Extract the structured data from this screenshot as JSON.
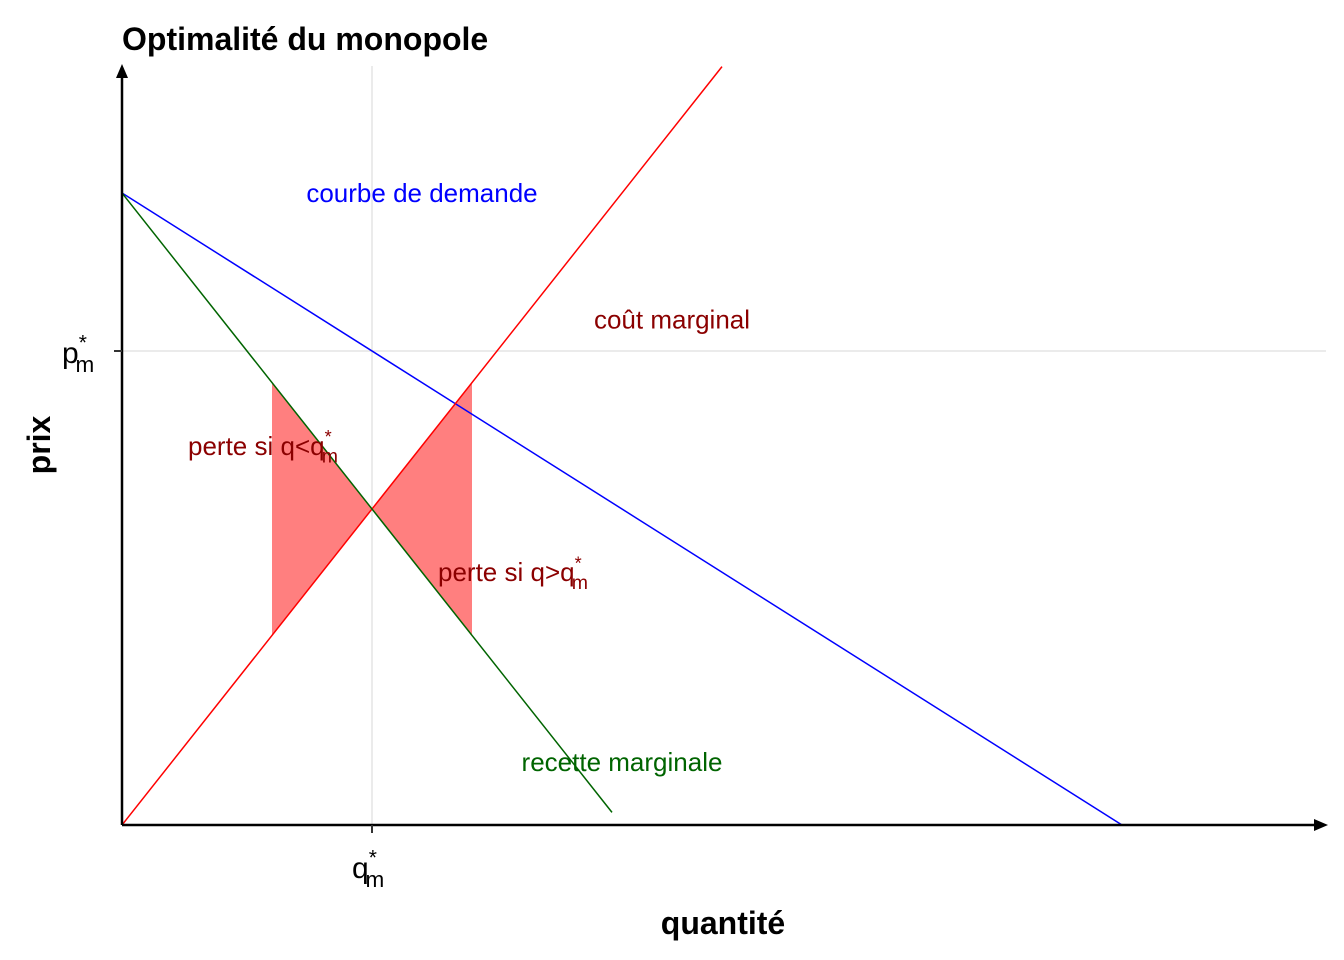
{
  "chart_data": {
    "type": "line",
    "title": "Optimalité du monopole",
    "xlabel": "quantité",
    "ylabel": "prix",
    "xlim": [
      0,
      12
    ],
    "ylim": [
      0,
      12
    ],
    "x_ticks": [
      {
        "x": 2.5,
        "base": "q",
        "sup": "*",
        "sub": "m"
      }
    ],
    "y_ticks": [
      {
        "y": 7.5,
        "base": "p",
        "sup": "*",
        "sub": "m"
      }
    ],
    "series": [
      {
        "name": "courbe de demande",
        "color": "#0000ff",
        "points": [
          [
            0,
            10
          ],
          [
            10,
            0
          ]
        ]
      },
      {
        "name": "coût marginal",
        "color": "#ff0000",
        "points": [
          [
            0,
            0
          ],
          [
            6,
            12
          ]
        ]
      },
      {
        "name": "recette marginale",
        "color": "#006400",
        "points": [
          [
            0,
            10
          ],
          [
            4.9,
            0.2
          ]
        ]
      }
    ],
    "shaded_regions": [
      {
        "color": "#ff0000",
        "opacity": 0.5,
        "x_from": 1.5,
        "x_to": 2.5
      },
      {
        "color": "#ff0000",
        "opacity": 0.5,
        "x_from": 2.5,
        "x_to": 3.5
      }
    ],
    "annotations": [
      {
        "text": "courbe de demande",
        "x": 3,
        "y": 10,
        "color": "#0000ff"
      },
      {
        "text": "coût marginal",
        "x": 5.5,
        "y": 8,
        "color": "#8b0000"
      },
      {
        "text": "recette marginale",
        "x": 5,
        "y": 1,
        "color": "#006400"
      },
      {
        "base": "perte si q<q",
        "sup": "*",
        "sub": "m",
        "x": 1.5,
        "y": 6,
        "color": "#8b0000"
      },
      {
        "base": "perte si q>q",
        "sup": "*",
        "sub": "m",
        "x": 4,
        "y": 4,
        "color": "#8b0000"
      }
    ],
    "grid": true
  }
}
